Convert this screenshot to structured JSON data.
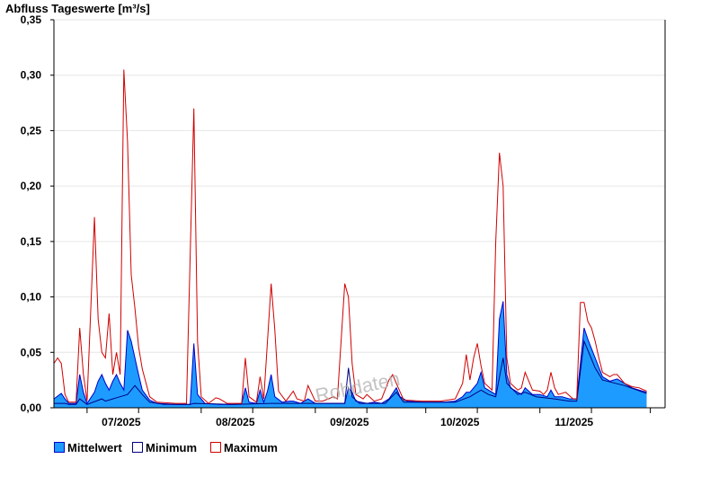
{
  "chart_data": {
    "type": "area",
    "title": "Abfluss Tageswerte [m³/s]",
    "watermark": "Rohdaten",
    "ylim": [
      0,
      0.35
    ],
    "y_ticks": [
      {
        "value": 0.0,
        "label": "0,00"
      },
      {
        "value": 0.05,
        "label": "0,05"
      },
      {
        "value": 0.1,
        "label": "0,10"
      },
      {
        "value": 0.15,
        "label": "0,15"
      },
      {
        "value": 0.2,
        "label": "0,20"
      },
      {
        "value": 0.25,
        "label": "0,25"
      },
      {
        "value": 0.3,
        "label": "0,30"
      },
      {
        "value": 0.35,
        "label": "0,35"
      }
    ],
    "grid": true,
    "legend_position": "bottom-left",
    "xlim": [
      "2025-06-22",
      "2025-12-05"
    ],
    "x_ticks": [
      {
        "date": "2025-07-01",
        "label": "07/2025"
      },
      {
        "date": "2025-08-01",
        "label": "08/2025"
      },
      {
        "date": "2025-09-01",
        "label": "09/2025"
      },
      {
        "date": "2025-10-01",
        "label": "10/2025"
      },
      {
        "date": "2025-11-01",
        "label": "11/2025"
      }
    ],
    "x_minor_ticks": [
      "2025-07-15",
      "2025-08-15",
      "2025-09-15",
      "2025-10-15",
      "2025-11-15",
      "2025-12-01"
    ],
    "series": [
      {
        "name": "Mittelwert",
        "style": "area",
        "fill_color": "#1e9bff",
        "line_color": "#0000cc",
        "points": [
          [
            "2025-06-22",
            0.008
          ],
          [
            "2025-06-24",
            0.013
          ],
          [
            "2025-06-25",
            0.008
          ],
          [
            "2025-06-26",
            0.004
          ],
          [
            "2025-06-28",
            0.004
          ],
          [
            "2025-06-29",
            0.03
          ],
          [
            "2025-06-30",
            0.014
          ],
          [
            "2025-07-01",
            0.004
          ],
          [
            "2025-07-03",
            0.014
          ],
          [
            "2025-07-04",
            0.024
          ],
          [
            "2025-07-05",
            0.03
          ],
          [
            "2025-07-06",
            0.022
          ],
          [
            "2025-07-07",
            0.016
          ],
          [
            "2025-07-08",
            0.024
          ],
          [
            "2025-07-09",
            0.03
          ],
          [
            "2025-07-10",
            0.022
          ],
          [
            "2025-07-11",
            0.016
          ],
          [
            "2025-07-12",
            0.07
          ],
          [
            "2025-07-13",
            0.06
          ],
          [
            "2025-07-14",
            0.045
          ],
          [
            "2025-07-15",
            0.03
          ],
          [
            "2025-07-16",
            0.016
          ],
          [
            "2025-07-18",
            0.007
          ],
          [
            "2025-07-20",
            0.004
          ],
          [
            "2025-07-25",
            0.003
          ],
          [
            "2025-07-29",
            0.003
          ],
          [
            "2025-07-30",
            0.058
          ],
          [
            "2025-07-31",
            0.012
          ],
          [
            "2025-08-02",
            0.004
          ],
          [
            "2025-08-06",
            0.003
          ],
          [
            "2025-08-10",
            0.003
          ],
          [
            "2025-08-12",
            0.004
          ],
          [
            "2025-08-13",
            0.018
          ],
          [
            "2025-08-14",
            0.005
          ],
          [
            "2025-08-16",
            0.004
          ],
          [
            "2025-08-17",
            0.016
          ],
          [
            "2025-08-18",
            0.005
          ],
          [
            "2025-08-19",
            0.015
          ],
          [
            "2025-08-20",
            0.03
          ],
          [
            "2025-08-21",
            0.01
          ],
          [
            "2025-08-23",
            0.005
          ],
          [
            "2025-08-25",
            0.006
          ],
          [
            "2025-08-26",
            0.006
          ],
          [
            "2025-08-28",
            0.004
          ],
          [
            "2025-08-30",
            0.008
          ],
          [
            "2025-09-01",
            0.004
          ],
          [
            "2025-09-05",
            0.004
          ],
          [
            "2025-09-09",
            0.004
          ],
          [
            "2025-09-10",
            0.018
          ],
          [
            "2025-09-11",
            0.014
          ],
          [
            "2025-09-12",
            0.006
          ],
          [
            "2025-09-15",
            0.004
          ],
          [
            "2025-09-17",
            0.005
          ],
          [
            "2025-09-19",
            0.004
          ],
          [
            "2025-09-21",
            0.008
          ],
          [
            "2025-09-23",
            0.018
          ],
          [
            "2025-09-24",
            0.01
          ],
          [
            "2025-09-26",
            0.006
          ],
          [
            "2025-09-30",
            0.005
          ],
          [
            "2025-10-03",
            0.005
          ],
          [
            "2025-10-06",
            0.005
          ],
          [
            "2025-10-09",
            0.006
          ],
          [
            "2025-10-11",
            0.01
          ],
          [
            "2025-10-12",
            0.014
          ],
          [
            "2025-10-13",
            0.014
          ],
          [
            "2025-10-14",
            0.018
          ],
          [
            "2025-10-15",
            0.022
          ],
          [
            "2025-10-16",
            0.032
          ],
          [
            "2025-10-17",
            0.018
          ],
          [
            "2025-10-19",
            0.014
          ],
          [
            "2025-10-20",
            0.012
          ],
          [
            "2025-10-21",
            0.08
          ],
          [
            "2025-10-22",
            0.096
          ],
          [
            "2025-10-23",
            0.03
          ],
          [
            "2025-10-24",
            0.018
          ],
          [
            "2025-10-26",
            0.014
          ],
          [
            "2025-10-27",
            0.012
          ],
          [
            "2025-10-28",
            0.018
          ],
          [
            "2025-10-30",
            0.012
          ],
          [
            "2025-11-01",
            0.012
          ],
          [
            "2025-11-03",
            0.01
          ],
          [
            "2025-11-04",
            0.016
          ],
          [
            "2025-11-05",
            0.01
          ],
          [
            "2025-11-07",
            0.01
          ],
          [
            "2025-11-09",
            0.008
          ],
          [
            "2025-11-11",
            0.008
          ],
          [
            "2025-11-12",
            0.04
          ],
          [
            "2025-11-13",
            0.072
          ],
          [
            "2025-11-14",
            0.062
          ],
          [
            "2025-11-16",
            0.045
          ],
          [
            "2025-11-18",
            0.028
          ],
          [
            "2025-11-20",
            0.024
          ],
          [
            "2025-11-22",
            0.026
          ],
          [
            "2025-11-24",
            0.022
          ],
          [
            "2025-11-26",
            0.018
          ],
          [
            "2025-11-28",
            0.016
          ],
          [
            "2025-11-30",
            0.014
          ]
        ]
      },
      {
        "name": "Minimum",
        "style": "line",
        "line_color": "#000080",
        "points": [
          [
            "2025-06-22",
            0.004
          ],
          [
            "2025-06-25",
            0.004
          ],
          [
            "2025-06-26",
            0.003
          ],
          [
            "2025-06-28",
            0.003
          ],
          [
            "2025-06-29",
            0.008
          ],
          [
            "2025-07-01",
            0.003
          ],
          [
            "2025-07-05",
            0.008
          ],
          [
            "2025-07-06",
            0.006
          ],
          [
            "2025-07-08",
            0.008
          ],
          [
            "2025-07-10",
            0.01
          ],
          [
            "2025-07-12",
            0.012
          ],
          [
            "2025-07-14",
            0.02
          ],
          [
            "2025-07-16",
            0.012
          ],
          [
            "2025-07-18",
            0.005
          ],
          [
            "2025-07-22",
            0.003
          ],
          [
            "2025-07-29",
            0.003
          ],
          [
            "2025-07-30",
            0.004
          ],
          [
            "2025-08-10",
            0.003
          ],
          [
            "2025-08-20",
            0.004
          ],
          [
            "2025-08-28",
            0.004
          ],
          [
            "2025-09-05",
            0.004
          ],
          [
            "2025-09-09",
            0.004
          ],
          [
            "2025-09-10",
            0.036
          ],
          [
            "2025-09-11",
            0.01
          ],
          [
            "2025-09-13",
            0.004
          ],
          [
            "2025-09-20",
            0.004
          ],
          [
            "2025-09-23",
            0.014
          ],
          [
            "2025-09-25",
            0.005
          ],
          [
            "2025-10-09",
            0.005
          ],
          [
            "2025-10-13",
            0.01
          ],
          [
            "2025-10-16",
            0.016
          ],
          [
            "2025-10-18",
            0.012
          ],
          [
            "2025-10-20",
            0.01
          ],
          [
            "2025-10-22",
            0.045
          ],
          [
            "2025-10-23",
            0.022
          ],
          [
            "2025-10-26",
            0.012
          ],
          [
            "2025-10-28",
            0.014
          ],
          [
            "2025-10-31",
            0.01
          ],
          [
            "2025-11-05",
            0.008
          ],
          [
            "2025-11-09",
            0.006
          ],
          [
            "2025-11-11",
            0.006
          ],
          [
            "2025-11-13",
            0.06
          ],
          [
            "2025-11-16",
            0.036
          ],
          [
            "2025-11-18",
            0.025
          ],
          [
            "2025-11-24",
            0.02
          ],
          [
            "2025-11-30",
            0.013
          ]
        ]
      },
      {
        "name": "Maximum",
        "style": "line",
        "line_color": "#d00000",
        "points": [
          [
            "2025-06-22",
            0.04
          ],
          [
            "2025-06-23",
            0.045
          ],
          [
            "2025-06-24",
            0.04
          ],
          [
            "2025-06-25",
            0.012
          ],
          [
            "2025-06-26",
            0.005
          ],
          [
            "2025-06-28",
            0.005
          ],
          [
            "2025-06-29",
            0.072
          ],
          [
            "2025-06-30",
            0.03
          ],
          [
            "2025-07-01",
            0.006
          ],
          [
            "2025-07-03",
            0.172
          ],
          [
            "2025-07-04",
            0.08
          ],
          [
            "2025-07-05",
            0.05
          ],
          [
            "2025-07-06",
            0.045
          ],
          [
            "2025-07-07",
            0.085
          ],
          [
            "2025-07-08",
            0.03
          ],
          [
            "2025-07-09",
            0.05
          ],
          [
            "2025-07-10",
            0.03
          ],
          [
            "2025-07-11",
            0.305
          ],
          [
            "2025-07-12",
            0.24
          ],
          [
            "2025-07-13",
            0.12
          ],
          [
            "2025-07-14",
            0.09
          ],
          [
            "2025-07-15",
            0.055
          ],
          [
            "2025-07-16",
            0.035
          ],
          [
            "2025-07-18",
            0.01
          ],
          [
            "2025-07-20",
            0.005
          ],
          [
            "2025-07-25",
            0.004
          ],
          [
            "2025-07-28",
            0.004
          ],
          [
            "2025-07-30",
            0.27
          ],
          [
            "2025-07-31",
            0.06
          ],
          [
            "2025-08-01",
            0.01
          ],
          [
            "2025-08-03",
            0.004
          ],
          [
            "2025-08-05",
            0.009
          ],
          [
            "2025-08-06",
            0.008
          ],
          [
            "2025-08-08",
            0.004
          ],
          [
            "2025-08-12",
            0.004
          ],
          [
            "2025-08-13",
            0.045
          ],
          [
            "2025-08-14",
            0.01
          ],
          [
            "2025-08-16",
            0.005
          ],
          [
            "2025-08-17",
            0.028
          ],
          [
            "2025-08-18",
            0.008
          ],
          [
            "2025-08-20",
            0.112
          ],
          [
            "2025-08-21",
            0.07
          ],
          [
            "2025-08-22",
            0.015
          ],
          [
            "2025-08-24",
            0.006
          ],
          [
            "2025-08-26",
            0.015
          ],
          [
            "2025-08-27",
            0.008
          ],
          [
            "2025-08-29",
            0.006
          ],
          [
            "2025-08-30",
            0.02
          ],
          [
            "2025-09-01",
            0.006
          ],
          [
            "2025-09-03",
            0.006
          ],
          [
            "2025-09-06",
            0.01
          ],
          [
            "2025-09-07",
            0.008
          ],
          [
            "2025-09-09",
            0.112
          ],
          [
            "2025-09-10",
            0.1
          ],
          [
            "2025-09-11",
            0.04
          ],
          [
            "2025-09-12",
            0.012
          ],
          [
            "2025-09-14",
            0.008
          ],
          [
            "2025-09-15",
            0.012
          ],
          [
            "2025-09-17",
            0.006
          ],
          [
            "2025-09-19",
            0.008
          ],
          [
            "2025-09-21",
            0.025
          ],
          [
            "2025-09-22",
            0.03
          ],
          [
            "2025-09-23",
            0.022
          ],
          [
            "2025-09-25",
            0.007
          ],
          [
            "2025-09-30",
            0.006
          ],
          [
            "2025-10-05",
            0.006
          ],
          [
            "2025-10-09",
            0.008
          ],
          [
            "2025-10-11",
            0.022
          ],
          [
            "2025-10-12",
            0.048
          ],
          [
            "2025-10-13",
            0.025
          ],
          [
            "2025-10-14",
            0.045
          ],
          [
            "2025-10-15",
            0.058
          ],
          [
            "2025-10-16",
            0.038
          ],
          [
            "2025-10-17",
            0.022
          ],
          [
            "2025-10-19",
            0.016
          ],
          [
            "2025-10-20",
            0.15
          ],
          [
            "2025-10-21",
            0.23
          ],
          [
            "2025-10-22",
            0.2
          ],
          [
            "2025-10-23",
            0.045
          ],
          [
            "2025-10-24",
            0.022
          ],
          [
            "2025-10-26",
            0.016
          ],
          [
            "2025-10-27",
            0.018
          ],
          [
            "2025-10-28",
            0.032
          ],
          [
            "2025-10-30",
            0.016
          ],
          [
            "2025-11-01",
            0.015
          ],
          [
            "2025-11-02",
            0.012
          ],
          [
            "2025-11-03",
            0.016
          ],
          [
            "2025-11-04",
            0.032
          ],
          [
            "2025-11-05",
            0.018
          ],
          [
            "2025-11-06",
            0.012
          ],
          [
            "2025-11-08",
            0.014
          ],
          [
            "2025-11-10",
            0.008
          ],
          [
            "2025-11-11",
            0.008
          ],
          [
            "2025-11-12",
            0.095
          ],
          [
            "2025-11-13",
            0.095
          ],
          [
            "2025-11-14",
            0.078
          ],
          [
            "2025-11-15",
            0.072
          ],
          [
            "2025-11-16",
            0.06
          ],
          [
            "2025-11-17",
            0.045
          ],
          [
            "2025-11-18",
            0.032
          ],
          [
            "2025-11-20",
            0.028
          ],
          [
            "2025-11-21",
            0.03
          ],
          [
            "2025-11-22",
            0.03
          ],
          [
            "2025-11-24",
            0.022
          ],
          [
            "2025-11-26",
            0.019
          ],
          [
            "2025-11-28",
            0.018
          ],
          [
            "2025-11-30",
            0.015
          ]
        ]
      }
    ],
    "legend": [
      {
        "label": "Mittelwert",
        "swatch_fill": "#1e9bff",
        "swatch_border": "#0000cc"
      },
      {
        "label": "Minimum",
        "swatch_fill": "#ffffff",
        "swatch_border": "#000080"
      },
      {
        "label": "Maximum",
        "swatch_fill": "#ffffff",
        "swatch_border": "#d00000"
      }
    ]
  }
}
